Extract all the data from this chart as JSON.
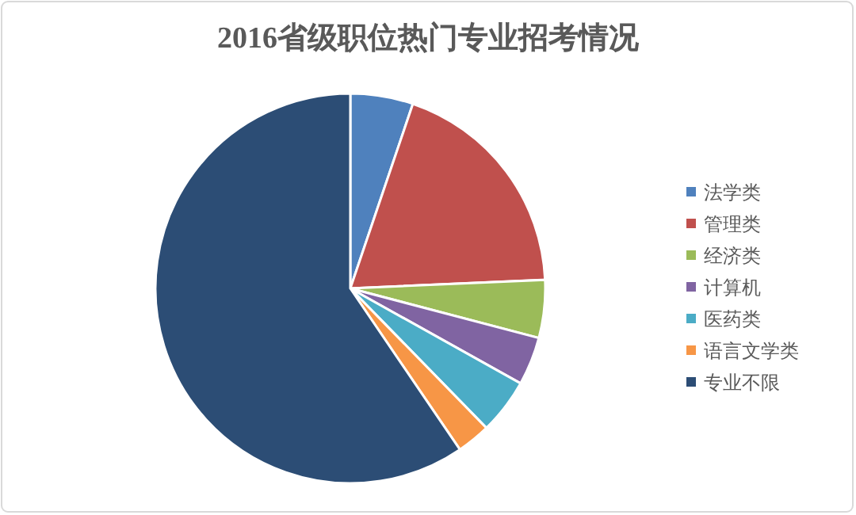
{
  "chart_data": {
    "type": "pie",
    "title": "2016省级职位热门专业招考情况",
    "categories": [
      "法学类",
      "管理类",
      "经济类",
      "计算机",
      "医药类",
      "语言文学类",
      "专业不限"
    ],
    "values": [
      5.2,
      19.1,
      4.8,
      4.0,
      4.6,
      2.8,
      59.5
    ],
    "colors": [
      "#4f81bd",
      "#c0504d",
      "#9bbb59",
      "#8064a2",
      "#4bacc6",
      "#f79646",
      "#2c4d75"
    ],
    "legend": "right"
  }
}
